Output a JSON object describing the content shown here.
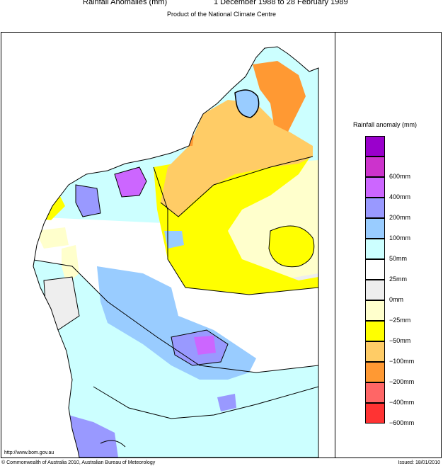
{
  "title": {
    "main": "Rainfall Anomalies (mm)",
    "period": "1 December 1988 to 28 February 1989",
    "subtitle": "Product of the National Climate Centre"
  },
  "legend": {
    "title": "Rainfall anomaly (mm)",
    "items": [
      {
        "label": "",
        "color": "#9a00cc"
      },
      {
        "label": "600mm",
        "color": "#cc33cc"
      },
      {
        "label": "400mm",
        "color": "#cc66ff"
      },
      {
        "label": "200mm",
        "color": "#9999ff"
      },
      {
        "label": "100mm",
        "color": "#99ccff"
      },
      {
        "label": "50mm",
        "color": "#ccffff"
      },
      {
        "label": "25mm",
        "color": "#ffffff"
      },
      {
        "label": "0mm",
        "color": "#eeeeee"
      },
      {
        "label": "−25mm",
        "color": "#ffffcc"
      },
      {
        "label": "−50mm",
        "color": "#ffff00"
      },
      {
        "label": "−100mm",
        "color": "#ffcc66"
      },
      {
        "label": "−200mm",
        "color": "#ff9933"
      },
      {
        "label": "−400mm",
        "color": "#ff6666"
      },
      {
        "label": "−600mm",
        "color": "#ff3333"
      }
    ]
  },
  "footer": {
    "url": "http://www.bom.gov.au",
    "copyright": "© Commonwealth of Australia 2010, Australian Bureau of Meteorology",
    "issued": "Issued: 18/01/2010"
  }
}
